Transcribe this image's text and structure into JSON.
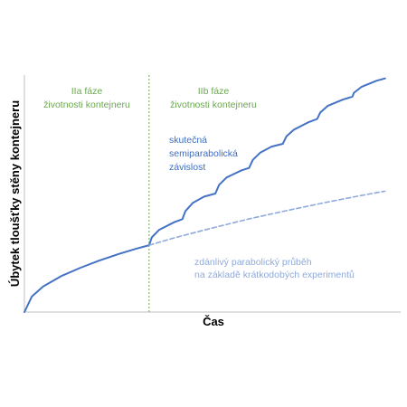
{
  "chart_data": {
    "type": "line",
    "xlabel": "Čas",
    "ylabel": "Úbytek tloušťky stěny kontejneru",
    "xlim": [
      0,
      100
    ],
    "ylim": [
      0,
      100
    ],
    "grid": false,
    "ticks": "none",
    "phase_boundary_x": 33.3,
    "phases": [
      {
        "name": "phase-IIa",
        "lines": [
          "IIa fáze",
          "životnosti kontejneru"
        ]
      },
      {
        "name": "phase-IIb",
        "lines": [
          "IIb fáze",
          "životnosti kontejneru"
        ]
      }
    ],
    "series": [
      {
        "key": "base",
        "role": "parabolic-initial",
        "color": "#4472c4",
        "style": "solid",
        "x": [
          0,
          2,
          5,
          10,
          15,
          20,
          25,
          30,
          33.3
        ],
        "y": [
          0,
          6.6,
          10.8,
          15.3,
          18.7,
          21.7,
          24.4,
          26.8,
          28.2
        ]
      },
      {
        "key": "real",
        "role": "semiparabolic",
        "color": "#4472c4",
        "style": "solid",
        "label_lines": [
          "skutečná",
          "semiparabolická",
          "závislost"
        ],
        "x": [
          33.3,
          34,
          36,
          40,
          42.2,
          43,
          45,
          48,
          51,
          52,
          54,
          58,
          60,
          61,
          63,
          66,
          69,
          70,
          72,
          76,
          78.2,
          79,
          81,
          85,
          87.6,
          88,
          90,
          94,
          96.3
        ],
        "y": [
          28.2,
          31.5,
          34.7,
          37.9,
          39.2,
          42.6,
          46.1,
          48.7,
          50.0,
          53.7,
          56.8,
          59.8,
          60.8,
          64.2,
          67.3,
          69.8,
          71.0,
          74.2,
          77.0,
          80.2,
          81.5,
          84.2,
          87.0,
          89.6,
          90.9,
          92.5,
          95.0,
          97.6,
          98.6
        ]
      },
      {
        "key": "apparent",
        "role": "apparent-parabolic",
        "color": "#8faadc",
        "style": "dashed",
        "label_lines": [
          "zdánlivý parabolický průběh",
          "na základě krátkodobých experimentů"
        ],
        "x": [
          33.3,
          40,
          50,
          60,
          70,
          80,
          90,
          96.3
        ],
        "y": [
          28.2,
          31.3,
          35.4,
          39.3,
          42.8,
          46.1,
          49.2,
          51.0
        ]
      }
    ]
  }
}
